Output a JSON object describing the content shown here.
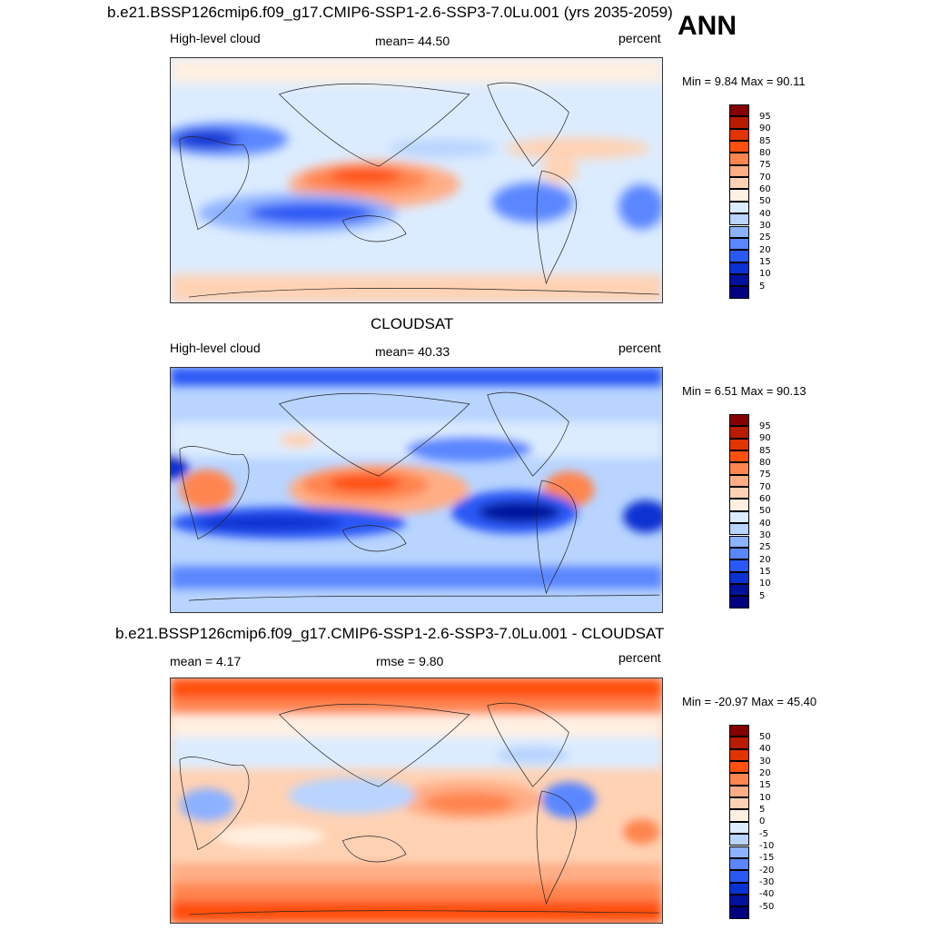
{
  "season": "ANN",
  "panels": [
    {
      "title": "b.e21.BSSP126cmip6.f09_g17.CMIP6-SSP1-2.6-SSP3-7.0Lu.001 (yrs 2035-2059)",
      "left_label": "High-level cloud",
      "center_label": "mean=  44.50",
      "right_label": "percent",
      "minmax": "Min =   9.84 Max =  90.11",
      "levels": [
        "95",
        "90",
        "85",
        "80",
        "75",
        "70",
        "60",
        "50",
        "40",
        "30",
        "25",
        "20",
        "15",
        "10",
        "5"
      ]
    },
    {
      "title": "CLOUDSAT",
      "left_label": "High-level cloud",
      "center_label": "mean=  40.33",
      "right_label": "percent",
      "minmax": "Min =   6.51 Max =  90.13",
      "levels": [
        "95",
        "90",
        "85",
        "80",
        "75",
        "70",
        "60",
        "50",
        "40",
        "30",
        "25",
        "20",
        "15",
        "10",
        "5"
      ]
    },
    {
      "title": "b.e21.BSSP126cmip6.f09_g17.CMIP6-SSP1-2.6-SSP3-7.0Lu.001 - CLOUDSAT",
      "left_label": "mean =   4.17",
      "center_label": "rmse =   9.80",
      "right_label": "percent",
      "minmax": "Min = -20.97 Max =  45.40",
      "levels": [
        "50",
        "40",
        "30",
        "20",
        "15",
        "10",
        "5",
        "0",
        "-5",
        "-10",
        "-15",
        "-20",
        "-30",
        "-40",
        "-50"
      ]
    }
  ],
  "colors": {
    "scale": [
      "#850000",
      "#b81c00",
      "#e23400",
      "#ff5010",
      "#ff8550",
      "#ffad85",
      "#ffd2b4",
      "#fff0e2",
      "#dcecff",
      "#b8d4ff",
      "#8cb1ff",
      "#5a86ff",
      "#2a58f5",
      "#0a32d2",
      "#00129c",
      "#000080"
    ]
  }
}
